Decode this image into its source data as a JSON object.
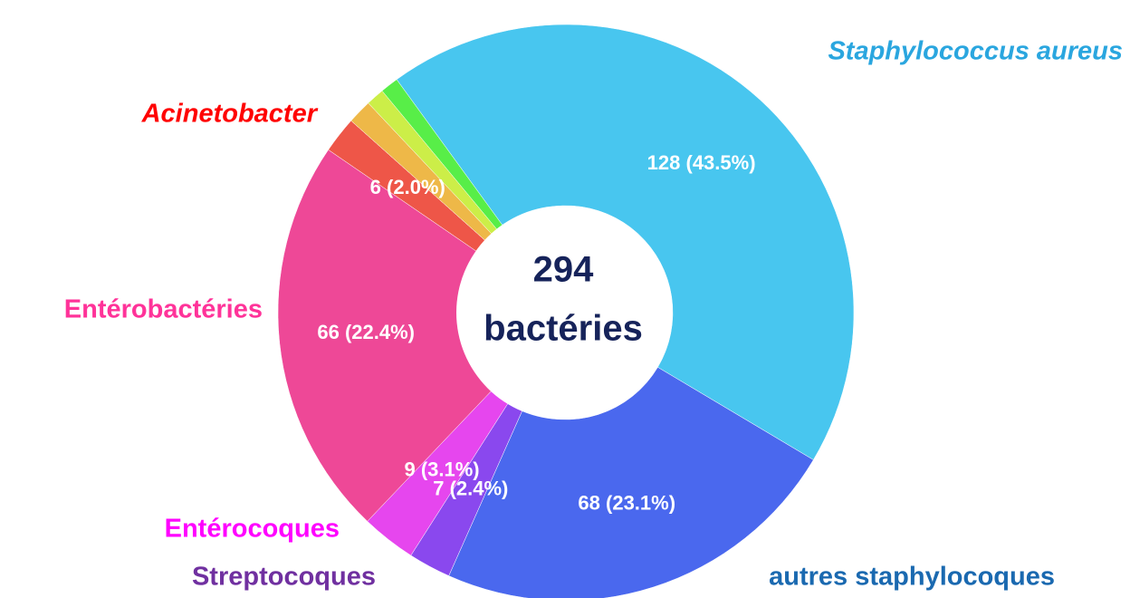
{
  "chart_data": {
    "type": "donut",
    "categories": [
      "Staphylococcus aureus",
      "autres staphylocoques",
      "Streptocoques",
      "Entérocoques",
      "Entérobactéries",
      "Acinetobacter",
      null,
      null,
      null
    ],
    "values": [
      128,
      68,
      7,
      9,
      66,
      6,
      4,
      3,
      3
    ],
    "value_labels": [
      "128 (43.5%)",
      "68 (23.1%)",
      "7 (2.4%)",
      "9 (3.1%)",
      "66 (22.4%)",
      "6 (2.0%)",
      null,
      null,
      null
    ],
    "colors": [
      "#48c6ef",
      "#4a68ee",
      "#8a48ee",
      "#e646ee",
      "#ee4897",
      "#ee5648",
      "#eeb848",
      "#ccee48",
      "#58ee48"
    ],
    "label_colors": [
      "#2aa6df",
      "#1a69b0",
      "#7030a0",
      "#ff00ff",
      "#ff3399",
      "#ff0000",
      null,
      null,
      null
    ],
    "center_total": "294",
    "center_text": "bactéries"
  }
}
